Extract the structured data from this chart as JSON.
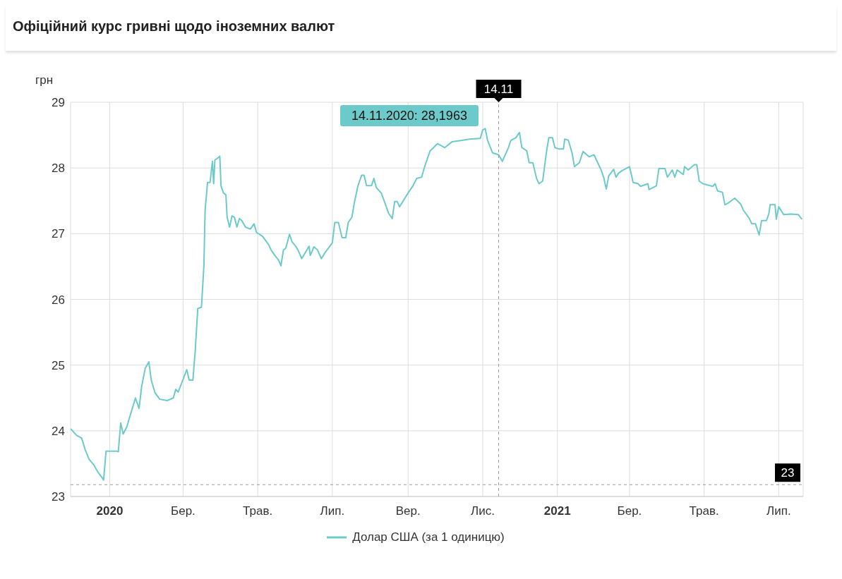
{
  "chart_data": {
    "type": "line",
    "title": "Офіційний курс гривні щодо іноземних валют",
    "ylabel": "грн",
    "x": [
      "2019-11-30",
      "2019-12-05",
      "2019-12-09",
      "2019-12-12",
      "2019-12-15",
      "2019-12-19",
      "2019-12-22",
      "2019-12-26",
      "2019-12-27",
      "2019-12-29",
      "2020-01-07",
      "2020-01-08",
      "2020-01-10",
      "2020-01-12",
      "2020-01-15",
      "2020-01-17",
      "2020-01-20",
      "2020-01-22",
      "2020-01-25",
      "2020-01-27",
      "2020-01-30",
      "2020-02-02",
      "2020-02-04",
      "2020-02-07",
      "2020-02-11",
      "2020-02-17",
      "2020-02-22",
      "2020-02-24",
      "2020-02-26",
      "2020-03-04",
      "2020-03-06",
      "2020-03-09",
      "2020-03-11",
      "2020-03-13",
      "2020-03-16",
      "2020-03-18",
      "2020-03-19",
      "2020-03-21",
      "2020-03-23",
      "2020-03-25",
      "2020-03-26",
      "2020-03-27",
      "2020-03-30",
      "2020-03-31",
      "2020-04-01",
      "2020-04-03",
      "2020-04-05",
      "2020-04-06",
      "2020-04-08",
      "2020-04-10",
      "2020-04-12",
      "2020-04-14",
      "2020-04-16",
      "2020-04-18",
      "2020-04-21",
      "2020-04-25",
      "2020-04-28",
      "2020-04-30",
      "2020-05-05",
      "2020-05-10",
      "2020-05-12",
      "2020-05-15",
      "2020-05-18",
      "2020-05-20",
      "2020-05-22",
      "2020-05-24",
      "2020-05-27",
      "2020-05-29",
      "2020-06-01",
      "2020-06-03",
      "2020-06-06",
      "2020-06-12",
      "2020-06-13",
      "2020-06-16",
      "2020-06-19",
      "2020-06-22",
      "2020-06-25",
      "2020-07-01",
      "2020-07-03",
      "2020-07-06",
      "2020-07-09",
      "2020-07-12",
      "2020-07-14",
      "2020-07-17",
      "2020-07-19",
      "2020-07-22",
      "2020-07-25",
      "2020-07-27",
      "2020-07-29",
      "2020-08-02",
      "2020-08-04",
      "2020-08-06",
      "2020-08-10",
      "2020-08-13",
      "2020-08-16",
      "2020-08-19",
      "2020-08-21",
      "2020-08-23",
      "2020-08-25",
      "2020-09-01",
      "2020-09-05",
      "2020-09-08",
      "2020-09-12",
      "2020-09-15",
      "2020-09-19",
      "2020-09-25",
      "2020-10-01",
      "2020-10-07",
      "2020-10-15",
      "2020-10-21",
      "2020-10-30",
      "2020-11-01",
      "2020-11-03",
      "2020-11-05",
      "2020-11-09",
      "2020-11-14",
      "2020-11-17",
      "2020-11-22",
      "2020-11-24",
      "2020-11-28",
      "2020-12-01",
      "2020-12-03",
      "2020-12-07",
      "2020-12-09",
      "2020-12-12",
      "2020-12-15",
      "2020-12-17",
      "2020-12-20",
      "2020-12-23",
      "2020-12-25",
      "2020-12-28",
      "2020-12-30",
      "2021-01-02",
      "2021-01-06",
      "2021-01-07",
      "2021-01-10",
      "2021-01-13",
      "2021-01-15",
      "2021-01-19",
      "2021-01-22",
      "2021-01-27",
      "2021-01-31",
      "2021-02-03",
      "2021-02-06",
      "2021-02-08",
      "2021-02-10",
      "2021-02-12",
      "2021-02-16",
      "2021-02-18",
      "2021-02-20",
      "2021-02-23",
      "2021-02-26",
      "2021-03-01",
      "2021-03-04",
      "2021-03-08",
      "2021-03-10",
      "2021-03-16",
      "2021-03-17",
      "2021-03-23",
      "2021-03-25",
      "2021-03-30",
      "2021-04-01",
      "2021-04-05",
      "2021-04-07",
      "2021-04-09",
      "2021-04-14",
      "2021-04-15",
      "2021-04-18",
      "2021-04-23",
      "2021-04-25",
      "2021-04-27",
      "2021-04-30",
      "2021-05-08",
      "2021-05-10",
      "2021-05-12",
      "2021-05-16",
      "2021-05-18",
      "2021-05-21",
      "2021-05-26",
      "2021-05-31",
      "2021-06-02",
      "2021-06-07",
      "2021-06-09",
      "2021-06-12",
      "2021-06-15",
      "2021-06-17",
      "2021-06-21",
      "2021-06-23",
      "2021-06-24",
      "2021-06-28",
      "2021-06-29",
      "2021-07-01",
      "2021-07-05",
      "2021-07-11",
      "2021-07-17",
      "2021-07-20"
    ],
    "series": [
      {
        "name": "Долар США (за 1 одиницю)",
        "color": "#6ccbca",
        "values": [
          24.03,
          23.93,
          23.89,
          23.71,
          23.57,
          23.48,
          23.38,
          23.28,
          23.25,
          23.69,
          23.69,
          23.68,
          24.12,
          23.95,
          24.06,
          24.19,
          24.37,
          24.5,
          24.34,
          24.66,
          24.95,
          25.05,
          24.77,
          24.58,
          24.48,
          24.46,
          24.5,
          24.63,
          24.59,
          24.93,
          24.77,
          24.77,
          25.24,
          25.86,
          25.88,
          26.51,
          27.36,
          27.78,
          27.78,
          28.1,
          27.76,
          28.12,
          28.16,
          28.18,
          27.73,
          27.62,
          27.59,
          27.25,
          27.1,
          27.27,
          27.25,
          27.1,
          27.23,
          27.2,
          27.1,
          27.07,
          27.15,
          27.02,
          26.96,
          26.83,
          26.75,
          26.67,
          26.6,
          26.51,
          26.75,
          26.78,
          26.99,
          26.88,
          26.81,
          26.75,
          26.62,
          26.81,
          26.67,
          26.8,
          26.75,
          26.62,
          26.71,
          26.86,
          27.17,
          27.17,
          26.94,
          26.94,
          27.17,
          27.25,
          27.47,
          27.73,
          27.89,
          27.89,
          27.73,
          27.73,
          27.84,
          27.7,
          27.62,
          27.47,
          27.31,
          27.23,
          27.49,
          27.49,
          27.41,
          27.62,
          27.73,
          27.84,
          27.86,
          28.05,
          28.26,
          28.37,
          28.31,
          28.4,
          28.42,
          28.44,
          28.45,
          28.58,
          28.6,
          28.42,
          28.23,
          28.2,
          28.1,
          28.31,
          28.42,
          28.46,
          28.54,
          28.31,
          28.26,
          28.08,
          28.08,
          27.84,
          27.76,
          27.8,
          28.23,
          28.46,
          28.46,
          28.31,
          28.29,
          28.29,
          28.44,
          28.42,
          28.23,
          28.02,
          28.08,
          28.25,
          28.17,
          28.2,
          28.08,
          27.96,
          27.85,
          27.68,
          27.88,
          27.98,
          27.86,
          27.92,
          27.96,
          27.99,
          28.02,
          27.78,
          27.76,
          27.72,
          27.76,
          27.67,
          27.73,
          27.99,
          27.99,
          27.86,
          27.97,
          27.86,
          27.97,
          27.9,
          28.02,
          27.97,
          28.05,
          28.05,
          27.8,
          27.76,
          27.72,
          27.76,
          27.65,
          27.63,
          27.44,
          27.47,
          27.54,
          27.45,
          27.36,
          27.23,
          27.15,
          27.15,
          26.98,
          27.2,
          27.2,
          27.31,
          27.44,
          27.44,
          27.22,
          27.41,
          27.29,
          27.3,
          27.29,
          27.22
        ]
      }
    ],
    "xlim": [
      "2019-11-30",
      "2021-07-21"
    ],
    "xticks": [
      {
        "value": "2020-01-01",
        "label": "2020"
      },
      {
        "value": "2020-03-01",
        "label": "Бер."
      },
      {
        "value": "2020-05-01",
        "label": "Трав."
      },
      {
        "value": "2020-07-01",
        "label": "Лип."
      },
      {
        "value": "2020-09-01",
        "label": "Вер."
      },
      {
        "value": "2020-11-01",
        "label": "Лис."
      },
      {
        "value": "2021-01-01",
        "label": "2021"
      },
      {
        "value": "2021-03-01",
        "label": "Бер."
      },
      {
        "value": "2021-05-01",
        "label": "Трав."
      },
      {
        "value": "2021-07-01",
        "label": "Лип."
      }
    ],
    "ylim": [
      23,
      29
    ],
    "yticks": [
      23,
      24,
      25,
      26,
      27,
      28,
      29
    ],
    "grid": true,
    "legend": "bottom",
    "ref_lines": [
      {
        "axis": "x",
        "value": "2020-11-14",
        "label": "14.11",
        "color": "#999999",
        "line_style": "dashed"
      },
      {
        "axis": "y",
        "value": 23.18,
        "label": "23",
        "color": "#999999",
        "line_style": "dashed"
      }
    ],
    "annotations": [
      "14.11.2020: 28,1963"
    ]
  }
}
